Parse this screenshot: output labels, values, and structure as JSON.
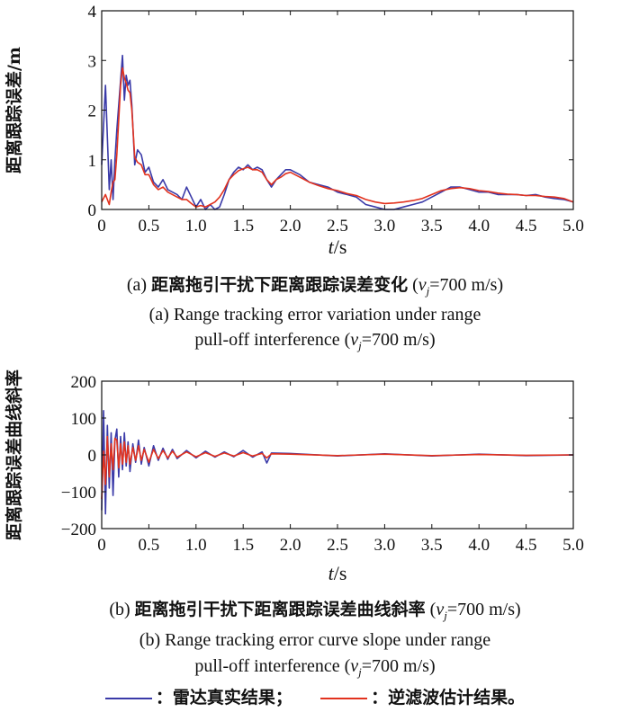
{
  "colors": {
    "radar": "#3a3aa8",
    "filter": "#e2321e",
    "axis": "#111111"
  },
  "chart_data": [
    {
      "type": "line",
      "ylabel": "距离跟踪误差/m",
      "xlabel": "t/s",
      "xlim": [
        0,
        5
      ],
      "ylim": [
        0,
        4
      ],
      "xticks": [
        "0",
        "0.5",
        "1.0",
        "1.5",
        "2.0",
        "2.5",
        "3.0",
        "3.5",
        "4.0",
        "4.5",
        "5.0"
      ],
      "yticks": [
        "0",
        "1",
        "2",
        "3",
        "4"
      ],
      "grid": false,
      "x": [
        0,
        0.04,
        0.08,
        0.1,
        0.12,
        0.14,
        0.16,
        0.18,
        0.2,
        0.22,
        0.24,
        0.26,
        0.28,
        0.3,
        0.32,
        0.35,
        0.38,
        0.42,
        0.46,
        0.5,
        0.55,
        0.6,
        0.65,
        0.7,
        0.75,
        0.8,
        0.85,
        0.9,
        0.95,
        1.0,
        1.05,
        1.1,
        1.15,
        1.2,
        1.25,
        1.3,
        1.35,
        1.4,
        1.45,
        1.5,
        1.55,
        1.6,
        1.65,
        1.7,
        1.75,
        1.8,
        1.85,
        1.9,
        1.95,
        2.0,
        2.1,
        2.2,
        2.3,
        2.4,
        2.5,
        2.6,
        2.7,
        2.8,
        2.9,
        3.0,
        3.1,
        3.2,
        3.3,
        3.4,
        3.5,
        3.6,
        3.7,
        3.8,
        3.9,
        4.0,
        4.1,
        4.2,
        4.3,
        4.4,
        4.5,
        4.6,
        4.7,
        4.8,
        4.9,
        5.0
      ],
      "series": [
        {
          "values": [
            0.9,
            2.5,
            0.4,
            1.0,
            0.2,
            1.0,
            1.6,
            2.1,
            2.6,
            3.1,
            2.2,
            2.7,
            2.5,
            2.6,
            2.1,
            0.9,
            1.2,
            1.1,
            0.75,
            0.85,
            0.55,
            0.45,
            0.6,
            0.4,
            0.35,
            0.3,
            0.2,
            0.45,
            0.25,
            0.05,
            0.2,
            0.0,
            0.1,
            0.0,
            0.05,
            0.3,
            0.6,
            0.75,
            0.85,
            0.8,
            0.9,
            0.8,
            0.85,
            0.8,
            0.6,
            0.45,
            0.6,
            0.7,
            0.8,
            0.8,
            0.7,
            0.55,
            0.5,
            0.45,
            0.35,
            0.3,
            0.25,
            0.1,
            0.05,
            0.0,
            0.0,
            0.05,
            0.1,
            0.15,
            0.25,
            0.35,
            0.45,
            0.45,
            0.4,
            0.35,
            0.35,
            0.3,
            0.3,
            0.3,
            0.28,
            0.3,
            0.25,
            0.22,
            0.2,
            0.15
          ]
        },
        {
          "values": [
            0.15,
            0.3,
            0.1,
            0.35,
            0.55,
            0.6,
            1.1,
            1.8,
            2.5,
            2.85,
            2.65,
            2.55,
            2.4,
            2.35,
            2.0,
            1.05,
            0.95,
            0.9,
            0.7,
            0.7,
            0.5,
            0.4,
            0.45,
            0.35,
            0.3,
            0.25,
            0.2,
            0.2,
            0.12,
            0.05,
            0.08,
            0.05,
            0.1,
            0.15,
            0.25,
            0.4,
            0.6,
            0.7,
            0.78,
            0.82,
            0.85,
            0.8,
            0.8,
            0.75,
            0.6,
            0.5,
            0.6,
            0.65,
            0.72,
            0.75,
            0.65,
            0.55,
            0.48,
            0.42,
            0.38,
            0.32,
            0.28,
            0.2,
            0.15,
            0.12,
            0.13,
            0.15,
            0.18,
            0.22,
            0.3,
            0.38,
            0.42,
            0.44,
            0.42,
            0.38,
            0.36,
            0.33,
            0.31,
            0.3,
            0.28,
            0.28,
            0.26,
            0.25,
            0.22,
            0.15
          ]
        }
      ]
    },
    {
      "type": "line",
      "ylabel": "距离跟踪误差曲线斜率",
      "xlabel": "t/s",
      "xlim": [
        0,
        5
      ],
      "ylim": [
        -200,
        200
      ],
      "xticks": [
        "0",
        "0.5",
        "1.0",
        "1.5",
        "2.0",
        "2.5",
        "3.0",
        "3.5",
        "4.0",
        "4.5",
        "5.0"
      ],
      "yticks": [
        "-200",
        "-100",
        "0",
        "100",
        "200"
      ],
      "grid": false,
      "x": [
        0,
        0.02,
        0.04,
        0.06,
        0.08,
        0.1,
        0.12,
        0.14,
        0.16,
        0.18,
        0.2,
        0.22,
        0.24,
        0.26,
        0.28,
        0.3,
        0.33,
        0.36,
        0.39,
        0.42,
        0.45,
        0.5,
        0.55,
        0.6,
        0.65,
        0.7,
        0.75,
        0.8,
        0.9,
        1.0,
        1.1,
        1.2,
        1.3,
        1.4,
        1.5,
        1.6,
        1.7,
        1.75,
        1.8,
        2.0,
        2.5,
        3.0,
        3.5,
        4.0,
        4.5,
        5.0
      ],
      "series": [
        {
          "values": [
            -150,
            120,
            -160,
            80,
            -90,
            60,
            -110,
            40,
            70,
            -60,
            50,
            -40,
            60,
            -30,
            35,
            -45,
            30,
            -20,
            40,
            -25,
            20,
            -30,
            25,
            -15,
            18,
            -12,
            15,
            -10,
            12,
            -8,
            10,
            -6,
            8,
            -5,
            12,
            -6,
            8,
            -22,
            5,
            4,
            -3,
            3,
            -3,
            2,
            -2,
            0
          ]
        },
        {
          "values": [
            -120,
            10,
            -80,
            50,
            -60,
            30,
            -40,
            45,
            40,
            -35,
            30,
            -25,
            35,
            -20,
            25,
            -25,
            20,
            -15,
            25,
            -15,
            15,
            -20,
            15,
            -10,
            12,
            -8,
            10,
            -6,
            8,
            -5,
            6,
            -4,
            5,
            -3,
            6,
            -3,
            4,
            -8,
            3,
            2,
            -2,
            2,
            -2,
            1,
            -1,
            0
          ]
        }
      ]
    }
  ],
  "captions": {
    "a_zh_prefix": "(a) ",
    "a_zh": "距离拖引干扰下距离跟踪误差变化",
    "a_v": "v",
    "a_vsub": "j",
    "a_vval": "=700 m/s)",
    "a_paren": " (",
    "a_en1": "(a) Range tracking error variation under range",
    "a_en2_pre": "pull-off interference (",
    "a_en2_post": "=700 m/s)",
    "b_zh_prefix": "(b) ",
    "b_zh": "距离拖引干扰下距离跟踪误差曲线斜率",
    "b_paren": " (",
    "b_vval": "=700 m/s)",
    "b_en1": "(b) Range tracking error curve slope under range",
    "b_en2_pre": "pull-off interference (",
    "b_en2_post": "=700 m/s)"
  },
  "legend": {
    "radar_label": "：雷达真实结果；",
    "filter_label": "：逆滤波估计结果。"
  }
}
